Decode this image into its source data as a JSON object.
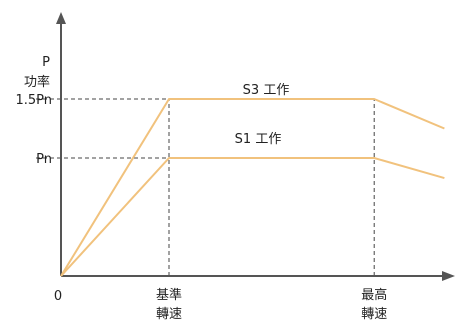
{
  "chart_data": {
    "type": "line",
    "title": "",
    "ylabel": "P",
    "ylabel_sub": "功率",
    "xlabel": "",
    "x_ticks": [
      {
        "label": "0",
        "value": 0
      },
      {
        "label_line1": "基準",
        "label_line2": "轉速",
        "value": 1
      },
      {
        "label_line1": "最高",
        "label_line2": "轉速",
        "value": 2.9
      }
    ],
    "y_ticks": [
      {
        "label": "Pn",
        "value": 1.0
      },
      {
        "label": "1.5Pn",
        "value": 1.5
      }
    ],
    "xlim": [
      0,
      3.8
    ],
    "ylim": [
      0,
      2.4
    ],
    "series": [
      {
        "name": "S3 工作",
        "x": [
          0,
          1,
          2.9,
          3.55
        ],
        "y": [
          0,
          1.5,
          1.5,
          1.25
        ]
      },
      {
        "name": "S1 工作",
        "x": [
          0,
          1,
          2.9,
          3.55
        ],
        "y": [
          0,
          1.0,
          1.0,
          0.83
        ]
      }
    ],
    "guides": [
      {
        "type": "h",
        "y": 1.5,
        "x_to": 2.9
      },
      {
        "type": "h",
        "y": 1.0,
        "x_to": 1
      },
      {
        "type": "v",
        "x": 1,
        "y_to": 1.5
      },
      {
        "type": "v",
        "x": 2.9,
        "y_to": 1.5
      }
    ],
    "colors": {
      "series": "#f1c27d",
      "axis": "#555555",
      "guide": "#444444",
      "text": "#222222"
    }
  }
}
